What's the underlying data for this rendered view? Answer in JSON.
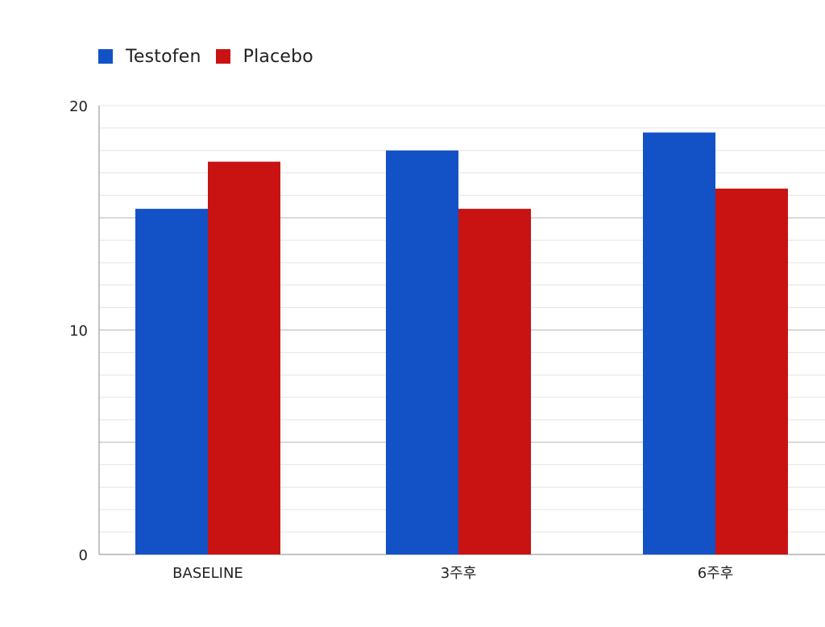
{
  "chart_data": {
    "type": "bar",
    "categories": [
      "BASELINE",
      "3주후",
      "6주후"
    ],
    "series": [
      {
        "name": "Testofen",
        "values": [
          15.4,
          18.0,
          18.8
        ],
        "color": "#1351c7"
      },
      {
        "name": "Placebo",
        "values": [
          17.5,
          15.4,
          16.3
        ],
        "color": "#c91212"
      }
    ],
    "title": "",
    "xlabel": "",
    "ylabel": "",
    "ylim": [
      0,
      20
    ],
    "yticks": [
      0,
      10,
      20
    ],
    "grid": true,
    "legend_position": "top-left"
  }
}
